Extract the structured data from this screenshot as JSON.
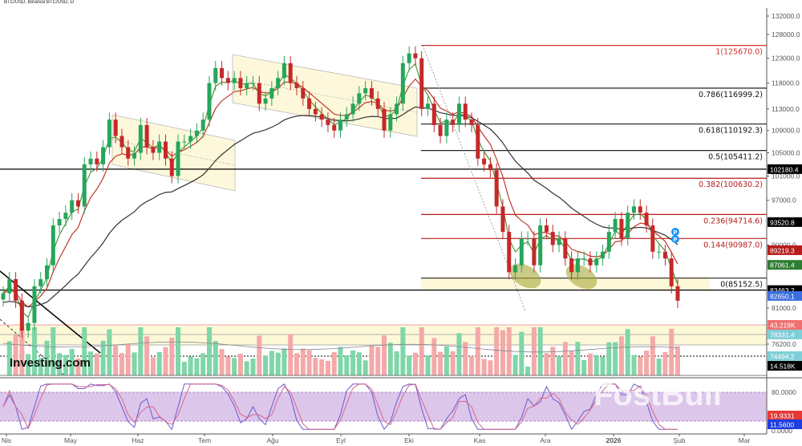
{
  "title": "BTC/USD, Binance:BTC/USD, D",
  "logo": "Investing.com",
  "watermark": "FostBull",
  "chart_data": {
    "type": "candlestick",
    "scale": "log",
    "ylim": [
      74000,
      134000
    ],
    "x_start": "2025-03-29",
    "x_step_days": 3,
    "closes_k": [
      83,
      85,
      82,
      78,
      79,
      84,
      85,
      87,
      93,
      94,
      95,
      97,
      96,
      103,
      104,
      103,
      106,
      111,
      108,
      106,
      104,
      105,
      110,
      106,
      105,
      107,
      104,
      101,
      107,
      107,
      108,
      109,
      111,
      118,
      121,
      119,
      118,
      119,
      117,
      118,
      118,
      114,
      115,
      117,
      119,
      122,
      118,
      117,
      115,
      113,
      112,
      111,
      110,
      109,
      111,
      112,
      114,
      116,
      117,
      115,
      113,
      109,
      112,
      114,
      122,
      124,
      123,
      113,
      114,
      110,
      108,
      111,
      110,
      114,
      111,
      110,
      104,
      103,
      102,
      96,
      92,
      86,
      87,
      91,
      91,
      87,
      93,
      92,
      90,
      91,
      88,
      86,
      88,
      88,
      87,
      88,
      89,
      92,
      94,
      91,
      95,
      96,
      95,
      93,
      89,
      89,
      88,
      84,
      82
    ],
    "y_ticks": [
      "132000.0",
      "128000.0",
      "123000.0",
      "118000.0",
      "113000.0",
      "109000.0",
      "105000.0",
      "101000.0",
      "97000.0",
      "90000.0",
      "81000.0",
      "76200.0"
    ],
    "x_ticks": [
      "Nis",
      "May",
      "Haz",
      "Tem",
      "Ağu",
      "Eyl",
      "Eki",
      "Kas",
      "Ara",
      "2026",
      "Şub",
      "Mar"
    ],
    "fib_levels": [
      {
        "label": "1(125670.0)",
        "price": 125670,
        "color": "#d32f2f"
      },
      {
        "label": "0.786(116999.2)",
        "price": 116999.2,
        "color": "#222222"
      },
      {
        "label": "0.618(110192.3)",
        "price": 110192.3,
        "color": "#222222"
      },
      {
        "label": "0.5(105411.2)",
        "price": 105411.2,
        "color": "#222222"
      },
      {
        "label": "0.382(100630.2)",
        "price": 100630.2,
        "color": "#b71c1c"
      },
      {
        "label": "0.236(94714.6)",
        "price": 94714.6,
        "color": "#b71c1c"
      },
      {
        "label": "0.144(90987.0)",
        "price": 90987.0,
        "color": "#b71c1c"
      },
      {
        "label": "0(85152.5)",
        "price": 85152.5,
        "color": "#222222"
      }
    ],
    "horizontal_lines": [
      102180.4,
      83463.2
    ],
    "price_badges": [
      {
        "text": "102180.4",
        "price": 102180.4,
        "bg": "#000000"
      },
      {
        "text": "93520.8",
        "price": 93520.8,
        "bg": "#000000"
      },
      {
        "text": "89219.3",
        "price": 89219.3,
        "bg": "#b71c1c"
      },
      {
        "text": "87061.4",
        "price": 87061.4,
        "bg": "#2e7d32"
      },
      {
        "text": "83463.2",
        "price": 83463.2,
        "bg": "#000000"
      },
      {
        "text": "82650.1",
        "price": 82650.1,
        "bg": "#3d6ee0"
      }
    ],
    "volume_badges": [
      {
        "text": "43.219K",
        "bg": "#f07070"
      },
      {
        "text": "78331.4",
        "bg": "#7fcfd8"
      },
      {
        "text": "74494.2",
        "bg": "#7fcfd8"
      },
      {
        "text": "14.518K",
        "bg": "#000000"
      }
    ],
    "oscillator": {
      "ticks": [
        "80.0000",
        "0.0000"
      ],
      "band": [
        20,
        80
      ],
      "badges": [
        {
          "text": "19.9331",
          "bg": "#e53935"
        },
        {
          "text": "11.5600",
          "bg": "#1e3ee0"
        }
      ]
    },
    "colors": {
      "up": "#26a65b",
      "down": "#c62828",
      "ma_fast": "#4c9a3c",
      "ma_mid": "#c0392b",
      "ma_slow": "#333333",
      "stoch_k": "#6a5acd",
      "stoch_d": "#d9668a",
      "band": "#dcc6ea",
      "zone": "#fdf8d8"
    }
  }
}
